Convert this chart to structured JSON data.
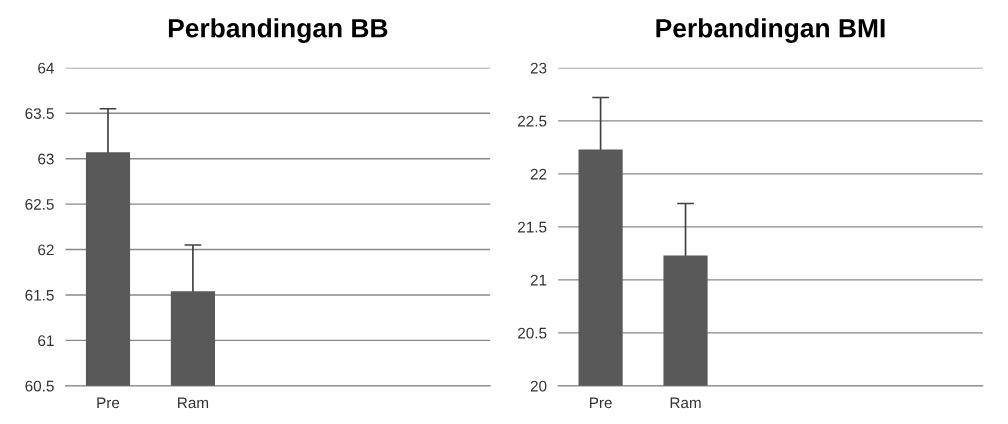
{
  "chart_data": [
    {
      "type": "bar",
      "title": "Perbandingan BB",
      "categories": [
        "Pre",
        "Ram",
        null,
        null,
        null
      ],
      "values": [
        63.07,
        61.54,
        null,
        null,
        null
      ],
      "errors": [
        0.48,
        0.51,
        null,
        null,
        null
      ],
      "color": "#595959",
      "ylim": [
        60.5,
        64
      ],
      "yticks": [
        60.5,
        61,
        61.5,
        62,
        62.5,
        63,
        63.5,
        64
      ],
      "grid": "y",
      "legend": false
    },
    {
      "type": "bar",
      "title": "Perbandingan BMI",
      "categories": [
        "Pre",
        "Ram",
        null,
        null,
        null
      ],
      "values": [
        22.23,
        21.23,
        null,
        null,
        null
      ],
      "errors": [
        0.49,
        0.49,
        null,
        null,
        null
      ],
      "color": "#595959",
      "ylim": [
        20,
        23
      ],
      "yticks": [
        20,
        20.5,
        21,
        21.5,
        22,
        22.5,
        23
      ],
      "grid": "y",
      "legend": false
    }
  ]
}
